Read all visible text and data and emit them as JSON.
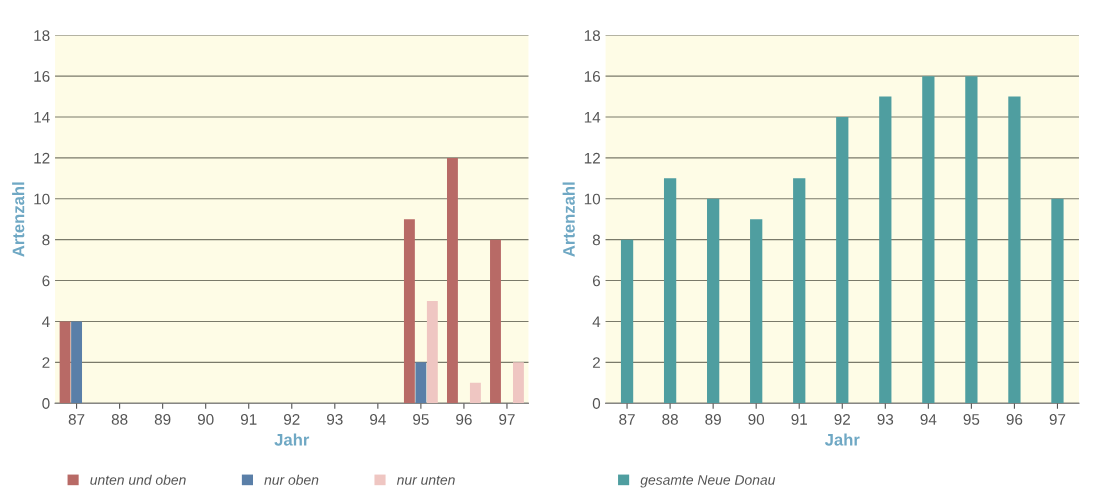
{
  "chart_data": [
    {
      "type": "bar",
      "xlabel": "Jahr",
      "ylabel": "Artenzahl",
      "categories": [
        "87",
        "88",
        "89",
        "90",
        "91",
        "92",
        "93",
        "94",
        "95",
        "96",
        "97"
      ],
      "ylim": [
        0,
        18
      ],
      "yticks": [
        0,
        2,
        4,
        6,
        8,
        10,
        12,
        14,
        16,
        18
      ],
      "grid": "y",
      "legend": "bottom left",
      "series": [
        {
          "name": "unten und oben",
          "color": "#b86a66",
          "values": [
            4,
            null,
            null,
            null,
            null,
            null,
            null,
            null,
            9,
            12,
            8
          ]
        },
        {
          "name": "nur oben",
          "color": "#5a7fa8",
          "values": [
            4,
            null,
            null,
            null,
            null,
            null,
            null,
            null,
            2,
            null,
            null
          ]
        },
        {
          "name": "nur unten",
          "color": "#efc6c2",
          "values": [
            null,
            null,
            null,
            null,
            null,
            null,
            null,
            null,
            5,
            1,
            2
          ]
        }
      ]
    },
    {
      "type": "bar",
      "xlabel": "Jahr",
      "ylabel": "Artenzahl",
      "categories": [
        "87",
        "88",
        "89",
        "90",
        "91",
        "92",
        "93",
        "94",
        "95",
        "96",
        "97"
      ],
      "ylim": [
        0,
        18
      ],
      "yticks": [
        0,
        2,
        4,
        6,
        8,
        10,
        12,
        14,
        16,
        18
      ],
      "grid": "y",
      "legend": "bottom left",
      "series": [
        {
          "name": "gesamte Neue Donau",
          "color": "#4f9ea0",
          "values": [
            8,
            11,
            10,
            9,
            11,
            14,
            15,
            16,
            16,
            15,
            10
          ]
        }
      ]
    }
  ]
}
